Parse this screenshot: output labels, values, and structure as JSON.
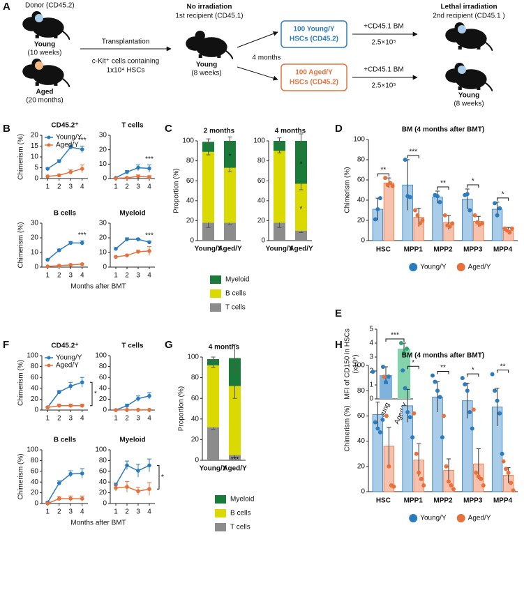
{
  "panel_labels": [
    "A",
    "B",
    "C",
    "D",
    "E",
    "F",
    "G",
    "H"
  ],
  "diagram": {
    "donor": "Donor (CD45.2)",
    "young_donor": "Young",
    "young_donor_age": "(10 weeks)",
    "aged_donor": "Aged",
    "aged_donor_age": "(20 months)",
    "transplantation": "Transplantation",
    "cells": "c-Kit⁺ cells containing",
    "cells_count": "1x10⁴ HSCs",
    "first_condition": "No irradiation",
    "first_recipient": "1st recipient (CD45.1)",
    "first_mouse": "Young",
    "first_mouse_age": "(8 weeks)",
    "interval": "4 months",
    "young_hscs": [
      "100 Young/Y",
      "HSCs (CD45.2)"
    ],
    "aged_hscs": [
      "100 Aged/Y",
      "HSCs (CD45.2)"
    ],
    "competitor": "+CD45.1 BM",
    "competitor_dose": "2.5×10⁵",
    "second_condition": "Lethal irradiation",
    "second_recipient": "2nd recipient (CD45.1 )",
    "second_mouse": "Young",
    "second_mouse_age": "(8 weeks)"
  },
  "chart_data": [
    {
      "type": "line",
      "title": "CD45.2⁺",
      "x": [
        1,
        2,
        3,
        4
      ],
      "xlim": [
        0.5,
        4.5
      ],
      "xticks": [
        1,
        2,
        3,
        4
      ],
      "ylim": [
        0,
        20
      ],
      "yticks": [
        0,
        5,
        10,
        15,
        20
      ],
      "ylabel": "Chimerism (%)",
      "legend": "upper left",
      "significance": "***",
      "series": [
        {
          "name": "Young/Y",
          "color": "#2b7bbf",
          "values": [
            4.5,
            8,
            14.5,
            13.5
          ],
          "errors": [
            0.4,
            0.7,
            1,
            1.5
          ]
        },
        {
          "name": "Aged/Y",
          "color": "#e8703a",
          "values": [
            1,
            1.5,
            3,
            4.5
          ],
          "errors": [
            0.2,
            0.4,
            1,
            1.8
          ]
        }
      ]
    },
    {
      "type": "line",
      "title": "T cells",
      "x": [
        1,
        2,
        3,
        4
      ],
      "xlim": [
        0.5,
        4.5
      ],
      "xticks": [
        1,
        2,
        3,
        4
      ],
      "ylim": [
        0,
        30
      ],
      "yticks": [
        0,
        10,
        20,
        30
      ],
      "significance": "***",
      "series": [
        {
          "name": "Young/Y",
          "color": "#2b7bbf",
          "values": [
            0.5,
            4.5,
            7.5,
            7
          ],
          "errors": [
            0.2,
            1,
            2,
            2.5
          ]
        },
        {
          "name": "Aged/Y",
          "color": "#e8703a",
          "values": [
            0.2,
            0.5,
            1.5,
            1
          ],
          "errors": [
            0.1,
            0.3,
            1,
            1
          ]
        }
      ]
    },
    {
      "type": "line",
      "title": "B cells",
      "x": [
        1,
        2,
        3,
        4
      ],
      "xlim": [
        0.5,
        4.5
      ],
      "xticks": [
        1,
        2,
        3,
        4
      ],
      "ylim": [
        0,
        30
      ],
      "yticks": [
        0,
        10,
        20,
        30
      ],
      "ylabel": "Chimerism (%)",
      "xlabel": "Months after BMT",
      "significance": "***",
      "series": [
        {
          "name": "Young/Y",
          "color": "#2b7bbf",
          "values": [
            5,
            11.5,
            16.5,
            16.5
          ],
          "errors": [
            0.5,
            0.8,
            1,
            1.5
          ]
        },
        {
          "name": "Aged/Y",
          "color": "#e8703a",
          "values": [
            0.5,
            1,
            1.5,
            2
          ],
          "errors": [
            0.2,
            0.2,
            0.3,
            0.3
          ]
        }
      ]
    },
    {
      "type": "line",
      "title": "Myeloid",
      "x": [
        1,
        2,
        3,
        4
      ],
      "xlim": [
        0.5,
        4.5
      ],
      "xticks": [
        1,
        2,
        3,
        4
      ],
      "ylim": [
        0,
        30
      ],
      "yticks": [
        0,
        10,
        20,
        30
      ],
      "significance": "***",
      "series": [
        {
          "name": "Young/Y",
          "color": "#2b7bbf",
          "values": [
            12.5,
            19,
            19,
            17
          ],
          "errors": [
            0.8,
            1,
            0.7,
            0.8
          ]
        },
        {
          "name": "Aged/Y",
          "color": "#e8703a",
          "values": [
            7,
            8,
            10.5,
            11
          ],
          "errors": [
            0.3,
            0.5,
            1,
            3
          ]
        }
      ]
    },
    {
      "type": "stacked",
      "title": "2 months",
      "categories": [
        "Young/Y",
        "Aged/Y"
      ],
      "ylim": [
        0,
        100
      ],
      "yticks": [
        0,
        20,
        40,
        60,
        80,
        100
      ],
      "ylabel": "Proportion (%)",
      "legend": "below",
      "series": [
        {
          "name": "T cells",
          "color": "#8c8c8c",
          "values": [
            18,
            18
          ],
          "errors": [
            5,
            2
          ]
        },
        {
          "name": "B cells",
          "color": "#dada00",
          "values": [
            71,
            55
          ],
          "errors": [
            3,
            4
          ]
        },
        {
          "name": "Myeloid",
          "color": "#1a7a3a",
          "values": [
            10,
            27
          ],
          "errors": [
            3,
            4
          ],
          "significance": [
            null,
            "*"
          ]
        }
      ]
    },
    {
      "type": "stacked",
      "title": "4 months",
      "categories": [
        "Young/Y",
        "Aged/Y"
      ],
      "ylim": [
        0,
        100
      ],
      "yticks": [
        0,
        20,
        40,
        60,
        80,
        100
      ],
      "series": [
        {
          "name": "T cells",
          "color": "#8c8c8c",
          "values": [
            18,
            10
          ],
          "errors": [
            5,
            2
          ]
        },
        {
          "name": "B cells",
          "color": "#dada00",
          "values": [
            72,
            47
          ],
          "errors": [
            2,
            6
          ],
          "significance": [
            null,
            "*"
          ]
        },
        {
          "name": "Myeloid",
          "color": "#1a7a3a",
          "values": [
            10,
            43
          ],
          "errors": [
            3,
            7
          ],
          "significance": [
            null,
            "*"
          ]
        }
      ]
    },
    {
      "type": "grouped",
      "title": "BM (4 months after BMT)",
      "categories": [
        "HSC",
        "MPP1",
        "MPP2",
        "MPP3",
        "MPP4"
      ],
      "ylim": [
        0,
        100
      ],
      "yticks": [
        0,
        20,
        40,
        60,
        80,
        100
      ],
      "ylabel": "Chimerism (%)",
      "legend": "below",
      "significance": [
        "**",
        "***",
        "**",
        "*",
        "*"
      ],
      "series": [
        {
          "name": "Young/Y",
          "color": "#a9cde9",
          "point_color": "#2b7bbf",
          "values": [
            31,
            55,
            43,
            41,
            31
          ],
          "errors": [
            11,
            25,
            6,
            10,
            7
          ],
          "points": [
            [
              21,
              31,
              42
            ],
            [
              80,
              44,
              43
            ],
            [
              45,
              44,
              38
            ],
            [
              45,
              46,
              30
            ],
            [
              37,
              25,
              32
            ]
          ]
        },
        {
          "name": "Aged/Y",
          "color": "#f6c2ad",
          "point_color": "#e8703a",
          "values": [
            57,
            23,
            18,
            19,
            10
          ],
          "errors": [
            5,
            9,
            7,
            5,
            3
          ],
          "points": [
            [
              62,
              55,
              57,
              54
            ],
            [
              30,
              25,
              17,
              20
            ],
            [
              25,
              15,
              14,
              17
            ],
            [
              25,
              18,
              16,
              17
            ],
            [
              12,
              10,
              8,
              12
            ]
          ]
        }
      ]
    },
    {
      "type": "bar",
      "categories": [
        "Young",
        "Aged/Y"
      ],
      "values": [
        1.7,
        3.6
      ],
      "errors": [
        0.6,
        0.4
      ],
      "colors": [
        "#7fb2dc",
        "#85d3ac"
      ],
      "point_colors": [
        "#2b7bbf",
        "#2aa56e"
      ],
      "points": [
        [
          2.3,
          1.2,
          1.6
        ],
        [
          4.0,
          3.3,
          3.6
        ]
      ],
      "ylim": [
        0,
        5
      ],
      "yticks": [
        0,
        1,
        2,
        3,
        4,
        5
      ],
      "ylabel": [
        "MFI of CD150 in HSCs",
        "(x10⁴)"
      ],
      "significance": "***"
    },
    {
      "type": "line",
      "title": "CD45.2⁺",
      "x": [
        1,
        2,
        3,
        4
      ],
      "xlim": [
        0.5,
        4.5
      ],
      "xticks": [
        1,
        2,
        3,
        4
      ],
      "ylim": [
        0,
        100
      ],
      "yticks": [
        0,
        20,
        40,
        60,
        80,
        100
      ],
      "ylabel": "Chimerism (%)",
      "legend": "upper left",
      "significance": "*",
      "significance_bracket": true,
      "series": [
        {
          "name": "Young/Y",
          "color": "#2b7bbf",
          "values": [
            5,
            33,
            44,
            51
          ],
          "errors": [
            1,
            3,
            7,
            9
          ]
        },
        {
          "name": "Aged/Y",
          "color": "#e8703a",
          "values": [
            5,
            8,
            8,
            8
          ],
          "errors": [
            1,
            3,
            3,
            3
          ]
        }
      ]
    },
    {
      "type": "line",
      "title": "T cells",
      "x": [
        1,
        2,
        3,
        4
      ],
      "xlim": [
        0.5,
        4.5
      ],
      "xticks": [
        1,
        2,
        3,
        4
      ],
      "ylim": [
        0,
        100
      ],
      "yticks": [
        0,
        20,
        40,
        60,
        80,
        100
      ],
      "series": [
        {
          "name": "Young/Y",
          "color": "#2b7bbf",
          "values": [
            0,
            8,
            21,
            26
          ],
          "errors": [
            0,
            3,
            5,
            6
          ]
        },
        {
          "name": "Aged/Y",
          "color": "#e8703a",
          "values": [
            0,
            0.5,
            0.5,
            0.5
          ],
          "errors": [
            0,
            0.3,
            0.3,
            0.3
          ]
        }
      ]
    },
    {
      "type": "line",
      "title": "B cells",
      "x": [
        1,
        2,
        3,
        4
      ],
      "xlim": [
        0.5,
        4.5
      ],
      "xticks": [
        1,
        2,
        3,
        4
      ],
      "ylim": [
        0,
        100
      ],
      "yticks": [
        0,
        20,
        40,
        60,
        80,
        100
      ],
      "ylabel": "Chimerism (%)",
      "xlabel": "Months after BMT",
      "series": [
        {
          "name": "Young/Y",
          "color": "#2b7bbf",
          "values": [
            2,
            38,
            55,
            56
          ],
          "errors": [
            1,
            4,
            6,
            9
          ]
        },
        {
          "name": "Aged/Y",
          "color": "#e8703a",
          "values": [
            0,
            9,
            9,
            9
          ],
          "errors": [
            0,
            4,
            5,
            5
          ]
        }
      ]
    },
    {
      "type": "line",
      "title": "Myeloid",
      "x": [
        1,
        2,
        3,
        4
      ],
      "xlim": [
        0.5,
        4.5
      ],
      "xticks": [
        1,
        2,
        3,
        4
      ],
      "ylim": [
        0,
        100
      ],
      "yticks": [
        0,
        20,
        40,
        60,
        80,
        100
      ],
      "significance": "*",
      "significance_bracket": true,
      "series": [
        {
          "name": "Young/Y",
          "color": "#2b7bbf",
          "values": [
            35,
            71,
            61,
            71
          ],
          "errors": [
            3,
            8,
            12,
            12
          ]
        },
        {
          "name": "Aged/Y",
          "color": "#e8703a",
          "values": [
            29,
            31,
            23,
            27
          ],
          "errors": [
            6,
            10,
            7,
            12
          ]
        }
      ]
    },
    {
      "type": "stacked",
      "title": "4 months",
      "categories": [
        "Young/Y",
        "Aged/Y"
      ],
      "ylim": [
        0,
        100
      ],
      "yticks": [
        0,
        20,
        40,
        60,
        80,
        100
      ],
      "ylabel": "Proportion (%)",
      "legend": "below",
      "series": [
        {
          "name": "T cells",
          "color": "#8c8c8c",
          "values": [
            32,
            5
          ],
          "errors": [
            2,
            2
          ],
          "significance": [
            null,
            "***"
          ]
        },
        {
          "name": "B cells",
          "color": "#dada00",
          "values": [
            60,
            67
          ],
          "errors": [
            2,
            12
          ]
        },
        {
          "name": "Myeloid",
          "color": "#1a7a3a",
          "values": [
            6,
            27
          ],
          "errors": [
            2,
            13
          ]
        }
      ]
    },
    {
      "type": "grouped",
      "title": "BM (4 months after BMT)",
      "categories": [
        "HSC",
        "MPP1",
        "MPP2",
        "MPP3",
        "MPP4"
      ],
      "ylim": [
        0,
        100
      ],
      "yticks": [
        0,
        20,
        40,
        60,
        80,
        100
      ],
      "ylabel": "Chimerism (%)",
      "legend": "below",
      "significance": [
        null,
        "*",
        "**",
        "*",
        "**"
      ],
      "series": [
        {
          "name": "Young/Y",
          "color": "#a9cde9",
          "point_color": "#2b7bbf",
          "values": [
            61,
            68,
            75,
            72,
            67
          ],
          "errors": [
            10,
            13,
            12,
            14,
            15
          ],
          "points": [
            [
              95,
              55,
              50,
              47,
              57
            ],
            [
              96,
              82,
              63,
              59,
              43
            ],
            [
              92,
              87,
              80,
              75,
              43
            ],
            [
              90,
              85,
              80,
              63,
              50
            ],
            [
              93,
              80,
              72,
              62,
              30
            ]
          ]
        },
        {
          "name": "Aged/Y",
          "color": "#f6c2ad",
          "point_color": "#e8703a",
          "values": [
            36,
            25,
            17,
            22,
            13
          ],
          "errors": [
            15,
            13,
            9,
            12,
            6
          ],
          "points": [
            [
              91,
              60,
              20,
              5,
              4
            ],
            [
              62,
              30,
              15,
              10,
              5
            ],
            [
              60,
              20,
              8,
              5,
              2
            ],
            [
              65,
              15,
              12,
              10,
              5
            ],
            [
              24,
              18,
              15,
              7,
              1
            ]
          ]
        }
      ]
    }
  ]
}
